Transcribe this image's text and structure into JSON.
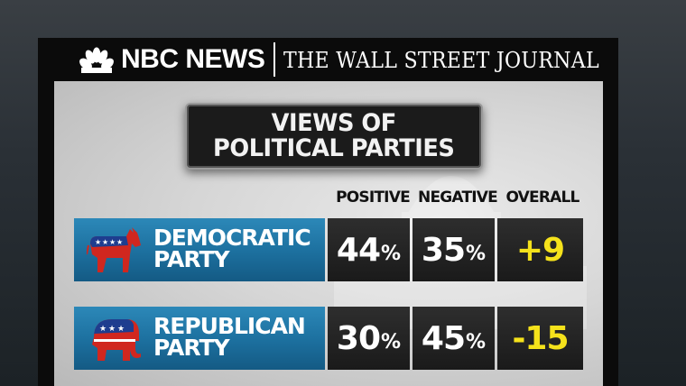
{
  "header": {
    "network": "NBC NEWS",
    "partner": "THE WALL STREET JOURNAL"
  },
  "title": {
    "line1": "VIEWS OF",
    "line2": "POLITICAL PARTIES"
  },
  "chart_data": {
    "type": "table",
    "title": "VIEWS OF POLITICAL PARTIES",
    "columns": [
      "POSITIVE",
      "NEGATIVE",
      "OVERALL"
    ],
    "rows": [
      {
        "party_line1": "DEMOCRATIC",
        "party_line2": "PARTY",
        "icon": "donkey-icon",
        "positive": 44,
        "positive_text": "44",
        "negative": 35,
        "negative_text": "35",
        "overall": 9,
        "overall_text": "+9"
      },
      {
        "party_line1": "REPUBLICAN",
        "party_line2": "PARTY",
        "icon": "elephant-icon",
        "positive": 30,
        "positive_text": "30",
        "negative": 45,
        "negative_text": "45",
        "overall": -15,
        "overall_text": "-15"
      }
    ],
    "percent_symbol": "%"
  },
  "colors": {
    "party_band": "#1c6f9e",
    "overall_text": "#f5e21b",
    "value_cell": "#1f1f1f"
  }
}
